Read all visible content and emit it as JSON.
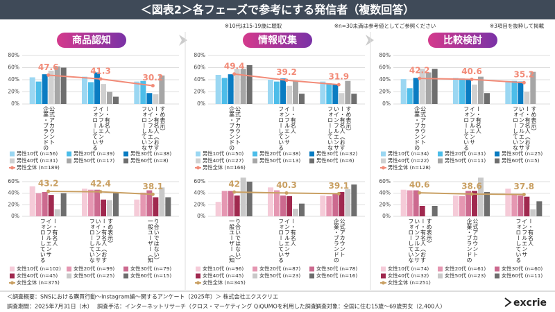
{
  "header": {
    "title": "＜図表2＞各フェーズで参考にする発信者（複数回答）",
    "notes": [
      "※10代は15-19歳に聴取",
      "※n=30未満は参考値としてご参照ください",
      "※3項目を抜粋して掲載"
    ]
  },
  "panels": [
    "商品認知",
    "情報収集",
    "比較検討"
  ],
  "chart_data": [
    {
      "type": "bar",
      "categories": [
        "企業・ブランドの公式アカウント",
        "フォローしているインフルエンサー・有名人",
        "フォローしていないインフルエンサー・有名人（おすすめ表示）"
      ],
      "ylim": [
        0,
        80
      ],
      "yticks": [
        {
          "value": 0,
          "label": "0%"
        },
        {
          "value": 20,
          "label": "20%"
        },
        {
          "value": 40,
          "label": "40%"
        },
        {
          "value": 60,
          "label": "60%"
        },
        {
          "value": 80,
          "label": "80%"
        }
      ],
      "grid": true,
      "series": [
        {
          "name": "男性10代 (n=56)",
          "color": "#9bd7f2",
          "values": [
            44,
            45,
            37
          ]
        },
        {
          "name": "男性20代 (n=39)",
          "color": "#4dbde9",
          "values": [
            37,
            36,
            38
          ]
        },
        {
          "name": "男性30代 (n=38)",
          "color": "#0a7cc2",
          "values": [
            49,
            52,
            18
          ]
        },
        {
          "name": "男性40代 (n=31)",
          "color": "#d0d0d0",
          "values": [
            55,
            33,
            16
          ]
        },
        {
          "name": "男性50代 (n=17)",
          "color": "#a6a6a6",
          "values": [
            62,
            20,
            47
          ]
        },
        {
          "name": "男性60代 (n=8)",
          "color": "#6e6e6e",
          "values": [
            60,
            12,
            0
          ]
        },
        {
          "name": "男性全体 (n=189)",
          "color": "#f28b78",
          "type": "line",
          "values": [
            47.6,
            41.3,
            30.2
          ]
        }
      ]
    },
    {
      "type": "bar",
      "categories": [
        "フォローしているインフルエンサー・有名人",
        "フォローしていないインフルエンサー・有名人（おすすめ表示）",
        "一般ユーザー（知り合いではない）"
      ],
      "ylim": [
        0,
        60
      ],
      "yticks": [
        {
          "value": 0,
          "label": "0%"
        },
        {
          "value": 20,
          "label": "20%"
        },
        {
          "value": 40,
          "label": "40%"
        },
        {
          "value": 60,
          "label": "60%"
        }
      ],
      "grid": true,
      "series": [
        {
          "name": "女性10代 (n=102)",
          "color": "#f5cbd8",
          "values": [
            52,
            48,
            29
          ]
        },
        {
          "name": "女性20代 (n=99)",
          "color": "#e597b2",
          "values": [
            40,
            46,
            41
          ]
        },
        {
          "name": "女性30代 (n=79)",
          "color": "#cc6a8f",
          "values": [
            42,
            46,
            45
          ]
        },
        {
          "name": "女性40代 (n=45)",
          "color": "#a0294f",
          "values": [
            37,
            29,
            33
          ]
        },
        {
          "name": "女性50代 (n=25)",
          "color": "#c9c9c9",
          "values": [
            12,
            28,
            50
          ]
        },
        {
          "name": "女性60代 (n=15)",
          "color": "#6e6e6e",
          "values": [
            40,
            40,
            33
          ]
        },
        {
          "name": "女性全体 (n=375)",
          "color": "#c9a063",
          "type": "line",
          "values": [
            43.2,
            42.4,
            38.1
          ]
        }
      ]
    },
    {
      "type": "bar",
      "categories": [
        "企業・ブランドの公式アカウント",
        "フォローしているインフルエンサー・有名人",
        "フォローしていないインフルエンサー・有名人（おすすめ表示）"
      ],
      "ylim": [
        0,
        80
      ],
      "yticks": [
        {
          "value": 0,
          "label": "0%"
        },
        {
          "value": 20,
          "label": "20%"
        },
        {
          "value": 40,
          "label": "40%"
        },
        {
          "value": 60,
          "label": "60%"
        },
        {
          "value": 80,
          "label": "80%"
        }
      ],
      "grid": true,
      "series": [
        {
          "name": "男性10代 (n=50)",
          "color": "#9bd7f2",
          "values": [
            48,
            40,
            37
          ]
        },
        {
          "name": "男性20代 (n=38)",
          "color": "#4dbde9",
          "values": [
            43,
            37,
            34
          ]
        },
        {
          "name": "男性30代 (n=32)",
          "color": "#0a7cc2",
          "values": [
            49,
            42,
            32
          ]
        },
        {
          "name": "男性40代 (n=27)",
          "color": "#d0d0d0",
          "values": [
            58,
            30,
            18
          ]
        },
        {
          "name": "男性50代 (n=13)",
          "color": "#a6a6a6",
          "values": [
            58,
            38,
            38
          ]
        },
        {
          "name": "男性60代 (n=6)",
          "color": "#6e6e6e",
          "values": [
            64,
            17,
            17
          ]
        },
        {
          "name": "男性全体 (n=166)",
          "color": "#f28b78",
          "type": "line",
          "values": [
            49.4,
            39.2,
            31.9
          ]
        }
      ]
    },
    {
      "type": "bar",
      "categories": [
        "一般ユーザー（知り合いではない）",
        "フォローしているインフルエンサー・有名人",
        "企業・ブランドの公式アカウント"
      ],
      "ylim": [
        0,
        60
      ],
      "yticks": [
        {
          "value": 0,
          "label": "0%"
        },
        {
          "value": 20,
          "label": "20%"
        },
        {
          "value": 40,
          "label": "40%"
        },
        {
          "value": 60,
          "label": "60%"
        }
      ],
      "grid": true,
      "series": [
        {
          "name": "女性10代 (n=96)",
          "color": "#f5cbd8",
          "values": [
            25,
            50,
            36
          ]
        },
        {
          "name": "女性20代 (n=87)",
          "color": "#e597b2",
          "values": [
            44,
            45,
            35
          ]
        },
        {
          "name": "女性30代 (n=78)",
          "color": "#cc6a8f",
          "values": [
            44,
            36,
            40
          ]
        },
        {
          "name": "女性40代 (n=45)",
          "color": "#a0294f",
          "values": [
            36,
            35,
            42
          ]
        },
        {
          "name": "女性50代 (n=23)",
          "color": "#c9c9c9",
          "values": [
            67,
            13,
            47
          ]
        },
        {
          "name": "女性60代 (n=16)",
          "color": "#6e6e6e",
          "values": [
            60,
            22,
            55
          ]
        },
        {
          "name": "女性全体 (n=345)",
          "color": "#c9a063",
          "type": "line",
          "values": [
            42.0,
            40.3,
            39.1
          ]
        }
      ]
    },
    {
      "type": "bar",
      "categories": [
        "企業・ブランドの公式アカウント",
        "フォローしているインフルエンサー・有名人",
        "フォローしていないインフルエンサー・有名人（おすすめ表示）"
      ],
      "ylim": [
        0,
        80
      ],
      "yticks": [
        {
          "value": 0,
          "label": "0%"
        },
        {
          "value": 20,
          "label": "20%"
        },
        {
          "value": 40,
          "label": "40%"
        },
        {
          "value": 60,
          "label": "60%"
        },
        {
          "value": 80,
          "label": "80%"
        }
      ],
      "grid": true,
      "series": [
        {
          "name": "男性10代 (n=34)",
          "color": "#9bd7f2",
          "values": [
            41,
            43,
            38
          ]
        },
        {
          "name": "男性20代 (n=31)",
          "color": "#4dbde9",
          "values": [
            26,
            42,
            38
          ]
        },
        {
          "name": "男性30代 (n=25)",
          "color": "#0a7cc2",
          "values": [
            43,
            40,
            37
          ]
        },
        {
          "name": "男性40代 (n=22)",
          "color": "#d0d0d0",
          "values": [
            58,
            32,
            20
          ]
        },
        {
          "name": "男性50代 (n=11)",
          "color": "#a6a6a6",
          "values": [
            52,
            45,
            53
          ]
        },
        {
          "name": "男性60代 (n=5)",
          "color": "#6e6e6e",
          "values": [
            58,
            18,
            0
          ]
        },
        {
          "name": "男性全体 (n=128)",
          "color": "#f28b78",
          "type": "line",
          "values": [
            42.2,
            40.6,
            35.2
          ]
        }
      ]
    },
    {
      "type": "bar",
      "categories": [
        "フォローしていないインフルエンサー・有名人（おすすめ表示）",
        "企業・ブランドの公式アカウント",
        "フォローしているインフルエンサー・有名人"
      ],
      "ylim": [
        0,
        60
      ],
      "yticks": [
        {
          "value": 0,
          "label": "0%"
        },
        {
          "value": 20,
          "label": "20%"
        },
        {
          "value": 40,
          "label": "40%"
        },
        {
          "value": 60,
          "label": "60%"
        }
      ],
      "grid": true,
      "series": [
        {
          "name": "女性10代 (n=74)",
          "color": "#f5cbd8",
          "values": [
            46,
            36,
            48
          ]
        },
        {
          "name": "女性20代 (n=61)",
          "color": "#e597b2",
          "values": [
            45,
            35,
            38
          ]
        },
        {
          "name": "女性30代 (n=60)",
          "color": "#cc6a8f",
          "values": [
            45,
            44,
            36
          ]
        },
        {
          "name": "女性40代 (n=32)",
          "color": "#a0294f",
          "values": [
            18,
            44,
            34
          ]
        },
        {
          "name": "女性50代 (n=23)",
          "color": "#c9c9c9",
          "values": [
            0,
            67,
            12
          ]
        },
        {
          "name": "女性60代 (n=11)",
          "color": "#6e6e6e",
          "values": [
            18,
            42,
            26
          ]
        },
        {
          "name": "女性全体 (n=251)",
          "color": "#c9a063",
          "type": "line",
          "values": [
            40.6,
            38.6,
            37.8
          ]
        }
      ]
    }
  ],
  "footer": {
    "summary": "＜調査概要：SNSにおける購買行動〜Instagram編〜関するアンケート（2025年）＞ 株式会社エクスクリエ",
    "period": "調査期間：2025年7月31日（木）",
    "method": "調査手法：インターネットリサーチ（クロス・マーケティング QiQUMOを利用した調査）",
    "target": "調査対象：全国に住む15歳〜69歳男女（2,400人）",
    "logo": "excrie"
  }
}
